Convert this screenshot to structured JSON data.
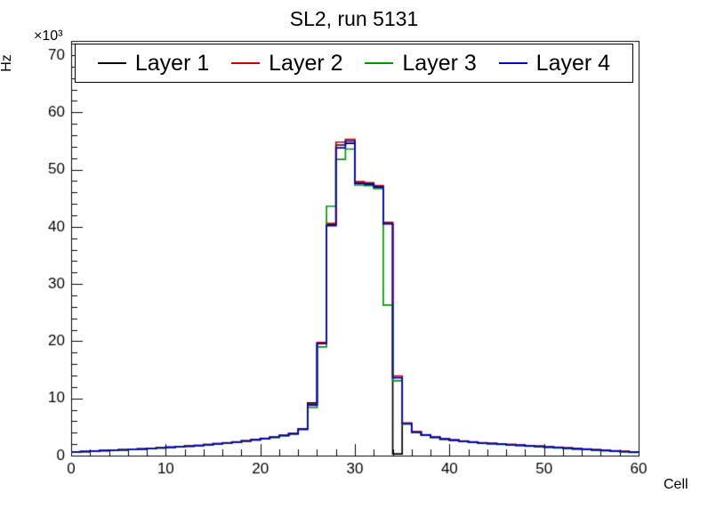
{
  "window": {
    "title": "SL2, run 5131"
  },
  "chart_data": {
    "type": "line",
    "style": "step-histogram",
    "title": "SL2, run 5131",
    "xlabel": "Cell",
    "ylabel": "Hz",
    "y_axis_multiplier": "×10³",
    "grid": false,
    "legend_position": "top-inside-horizontal",
    "xlim": [
      0,
      60
    ],
    "ylim": [
      0,
      72500
    ],
    "x_major_ticks": [
      0,
      10,
      20,
      30,
      40,
      50,
      60
    ],
    "x_tick_labels": [
      "0",
      "10",
      "20",
      "30",
      "40",
      "50",
      "60"
    ],
    "x_minor_step": 2,
    "y_major_ticks": [
      0,
      10000,
      20000,
      30000,
      40000,
      50000,
      60000,
      70000
    ],
    "y_tick_labels": [
      "0",
      "10",
      "20",
      "30",
      "40",
      "50",
      "60",
      "70"
    ],
    "y_minor_step": 2000,
    "bins": {
      "start": 0,
      "width": 1,
      "count": 60,
      "unit_x": "cell",
      "unit_y": "Hz"
    },
    "series": [
      {
        "name": "Layer 1",
        "color": "#000000",
        "values": [
          620,
          700,
          800,
          880,
          950,
          1000,
          1080,
          1150,
          1250,
          1350,
          1450,
          1550,
          1650,
          1750,
          1900,
          2050,
          2200,
          2350,
          2550,
          2750,
          2950,
          3200,
          3500,
          3800,
          4600,
          9200,
          19600,
          40300,
          54300,
          54600,
          47600,
          47400,
          46900,
          40600,
          300,
          5600,
          4100,
          3600,
          3200,
          2900,
          2700,
          2500,
          2350,
          2200,
          2100,
          2000,
          1900,
          1800,
          1700,
          1600,
          1500,
          1400,
          1300,
          1200,
          1100,
          1000,
          900,
          800,
          700,
          600
        ]
      },
      {
        "name": "Layer 2",
        "color": "#cc0000",
        "values": [
          640,
          720,
          820,
          900,
          970,
          1030,
          1110,
          1180,
          1280,
          1380,
          1480,
          1580,
          1680,
          1790,
          1940,
          2090,
          2240,
          2400,
          2600,
          2800,
          3000,
          3260,
          3560,
          3870,
          4700,
          8900,
          19800,
          40600,
          54800,
          55300,
          47900,
          47700,
          47200,
          40800,
          13900,
          5700,
          4200,
          3650,
          3250,
          2950,
          2750,
          2550,
          2400,
          2250,
          2150,
          2050,
          1950,
          1850,
          1750,
          1650,
          1550,
          1450,
          1350,
          1250,
          1150,
          1050,
          950,
          850,
          750,
          650
        ]
      },
      {
        "name": "Layer 3",
        "color": "#009900",
        "values": [
          600,
          680,
          780,
          860,
          930,
          980,
          1060,
          1130,
          1230,
          1330,
          1430,
          1530,
          1630,
          1730,
          1880,
          2030,
          2180,
          2330,
          2530,
          2730,
          2930,
          3180,
          3480,
          3780,
          4550,
          8400,
          19000,
          43600,
          51800,
          53600,
          47300,
          47200,
          46700,
          26300,
          13100,
          5500,
          4050,
          3550,
          3150,
          2850,
          2650,
          2450,
          2300,
          2150,
          2050,
          1950,
          1850,
          1750,
          1650,
          1550,
          1450,
          1350,
          1250,
          1150,
          1050,
          950,
          850,
          750,
          650,
          550
        ]
      },
      {
        "name": "Layer 4",
        "color": "#0000cc",
        "values": [
          630,
          710,
          810,
          890,
          960,
          1010,
          1090,
          1160,
          1260,
          1360,
          1460,
          1560,
          1660,
          1770,
          1920,
          2070,
          2220,
          2370,
          2570,
          2770,
          2970,
          3230,
          3530,
          3830,
          4650,
          8800,
          19600,
          40200,
          53800,
          55000,
          47600,
          47500,
          47000,
          40500,
          13600,
          5600,
          4100,
          3600,
          3200,
          2900,
          2700,
          2500,
          2350,
          2200,
          2100,
          2000,
          1900,
          1800,
          1700,
          1600,
          1500,
          1400,
          1300,
          1200,
          1100,
          1000,
          900,
          800,
          700,
          600
        ]
      }
    ]
  }
}
